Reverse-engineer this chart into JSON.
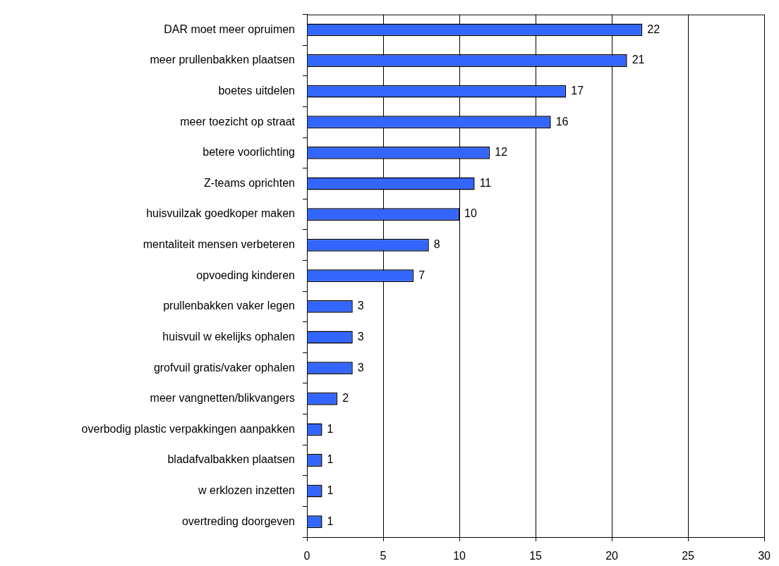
{
  "chart_data": {
    "type": "bar",
    "orientation": "horizontal",
    "categories": [
      "DAR moet meer opruimen",
      "meer prullenbakken plaatsen",
      "boetes uitdelen",
      "meer toezicht op straat",
      "betere voorlichting",
      "Z-teams oprichten",
      "huisvuilzak goedkoper maken",
      "mentaliteit mensen verbeteren",
      "opvoeding kinderen",
      "prullenbakken vaker legen",
      "huisvuil w ekelijks ophalen",
      "grofvuil gratis/vaker ophalen",
      "meer vangnetten/blikvangers",
      "overbodig plastic verpakkingen aanpakken",
      "bladafvalbakken plaatsen",
      "w erklozen inzetten",
      "overtreding doorgeven"
    ],
    "values": [
      22,
      21,
      17,
      16,
      12,
      11,
      10,
      8,
      7,
      3,
      3,
      3,
      2,
      1,
      1,
      1,
      1
    ],
    "color": "#3366ff",
    "xlim": [
      0,
      30
    ],
    "xticks": [
      0,
      5,
      10,
      15,
      20,
      25,
      30
    ],
    "grid": "x",
    "data_labels": true
  }
}
